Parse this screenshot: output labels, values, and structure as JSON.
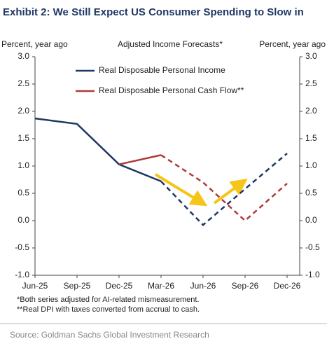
{
  "chart_data": {
    "type": "line",
    "title": "Exhibit 2: We Still Expect US Consumer Spending to Slow in",
    "subtitle": "Adjusted Income Forecasts*",
    "ylabel": "Percent, year ago",
    "y2label": "Percent, year ago",
    "categories": [
      "Jun-25",
      "Sep-25",
      "Dec-25",
      "Mar-26",
      "Jun-26",
      "Sep-26",
      "Dec-26"
    ],
    "dashed_after": "Mar-26",
    "series": [
      {
        "name": "Real Disposable Personal Income",
        "color": "#1f3864",
        "values": [
          1.87,
          1.77,
          1.03,
          0.72,
          -0.08,
          0.58,
          1.23
        ]
      },
      {
        "name": "Real Disposable Personal Cash Flow**",
        "color": "#b03a3a",
        "values": [
          null,
          null,
          1.03,
          1.2,
          0.7,
          0.0,
          0.68
        ]
      }
    ],
    "ylim": [
      -1,
      3
    ],
    "yticks": [
      {
        "value": 3,
        "label": "3.0"
      },
      2.5,
      {
        "value": 2,
        "label": "2.0"
      },
      1.5,
      {
        "value": 1,
        "label": "1.0"
      },
      0.5,
      {
        "value": 0,
        "label": "0.0"
      },
      -0.5,
      {
        "value": -1,
        "label": "-1.0"
      }
    ],
    "y2lim": [
      -1,
      3
    ],
    "y2ticks": [
      {
        "value": 3,
        "label": "3.0"
      },
      2.5,
      {
        "value": 2,
        "label": "2.0"
      },
      1.5,
      {
        "value": 1,
        "label": "1.0"
      },
      0.5,
      {
        "value": 0,
        "label": "0.0"
      },
      -0.5,
      {
        "value": -1,
        "label": "-1.0"
      }
    ],
    "legend": "upper left",
    "footnotes": [
      "*Both series adjusted for AI-related mismeasurement.",
      "**Real DPI with taxes converted from accrual to cash."
    ],
    "source": "Source: Goldman Sachs Global Investment Research"
  }
}
